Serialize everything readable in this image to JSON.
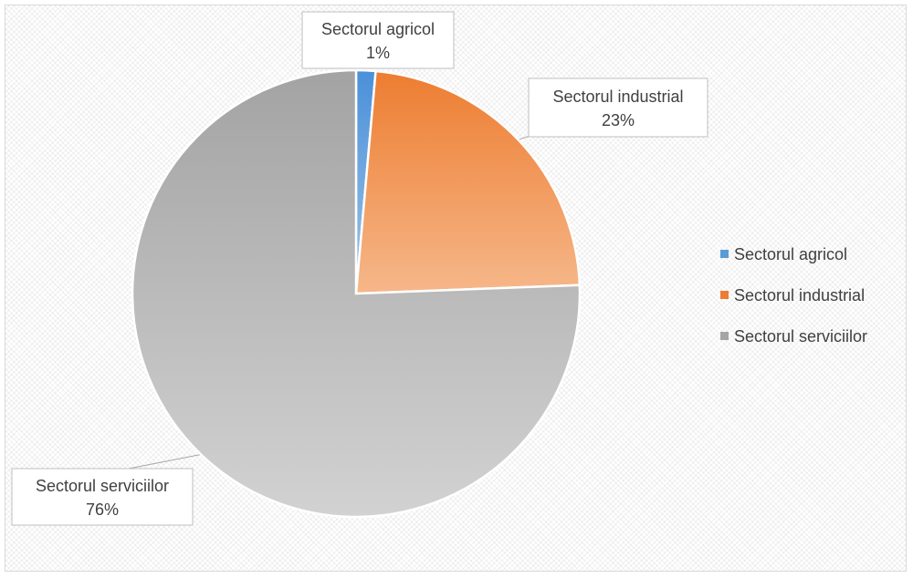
{
  "chart_data": {
    "type": "pie",
    "categories": [
      "Sectorul agricol",
      "Sectorul industrial",
      "Sectorul serviciilor"
    ],
    "values": [
      1.4,
      23,
      75.6
    ],
    "data_labels": [
      "1%",
      "23%",
      "76%"
    ],
    "colors": [
      "#5b9bd5",
      "#ed7d31",
      "#a5a5a5"
    ],
    "legend": {
      "position": "right",
      "entries": [
        "Sectorul agricol",
        "Sectorul industrial",
        "Sectorul serviciilor"
      ]
    },
    "title": ""
  }
}
